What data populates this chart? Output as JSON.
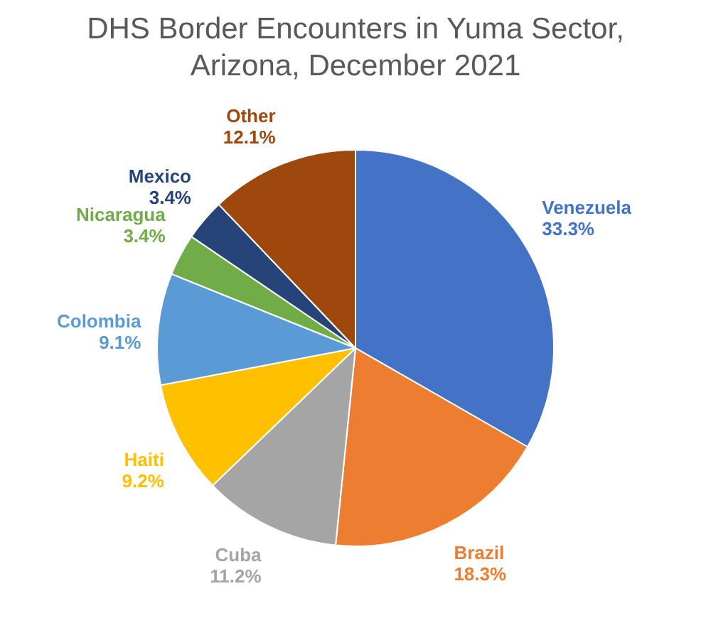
{
  "chart_data": {
    "type": "pie",
    "title": "DHS Border Encounters in Yuma Sector, Arizona, December 2021",
    "categories": [
      "Venezuela",
      "Brazil",
      "Cuba",
      "Haiti",
      "Colombia",
      "Nicaragua",
      "Mexico",
      "Other"
    ],
    "values": [
      33.3,
      18.3,
      11.2,
      9.2,
      9.1,
      3.4,
      3.4,
      12.1
    ],
    "colors": [
      "#4472c4",
      "#ed7d31",
      "#a5a5a5",
      "#ffc000",
      "#5b9bd5",
      "#70ad47",
      "#264478",
      "#9e480e"
    ],
    "value_labels": [
      "33.3%",
      "18.3%",
      "11.2%",
      "9.2%",
      "9.1%",
      "3.4%",
      "3.4%",
      "12.1%"
    ],
    "legend": false
  }
}
